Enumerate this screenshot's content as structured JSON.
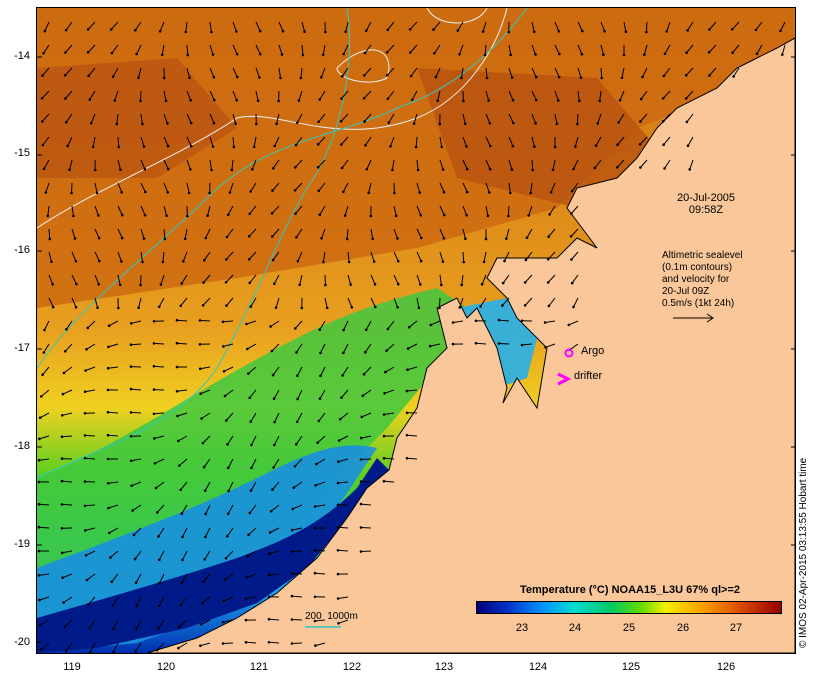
{
  "map": {
    "y_ticks": [
      "-14",
      "-15",
      "-16",
      "-17",
      "-18",
      "-19",
      "-20"
    ],
    "x_ticks": [
      "119",
      "120",
      "121",
      "122",
      "123",
      "124",
      "125",
      "126"
    ],
    "colors": {
      "land": "#f9c79a",
      "warm": "#c0500a",
      "mid": "#e08a10",
      "cool": "#40c040",
      "cold": "#0040c0"
    }
  },
  "annotations": {
    "timestamp_date": "20-Jul-2005",
    "timestamp_time": "09:58Z",
    "sealevel_lines": [
      "Altimetric sealevel",
      "(0.1m contours)",
      "and velocity for",
      "20-Jul 09Z",
      "0.5m/s (1kt 24h)"
    ],
    "argo_label": "Argo",
    "drifter_label": "drifter",
    "isobath_label": "200  1000m"
  },
  "colorbar": {
    "title": "Temperature (°C) NOAA15_L3U 67% ql>=2",
    "ticks": [
      "23",
      "24",
      "25",
      "26",
      "27"
    ]
  },
  "credit": "© IMOS 02-Apr-2015 03:13:55 Hobart time"
}
